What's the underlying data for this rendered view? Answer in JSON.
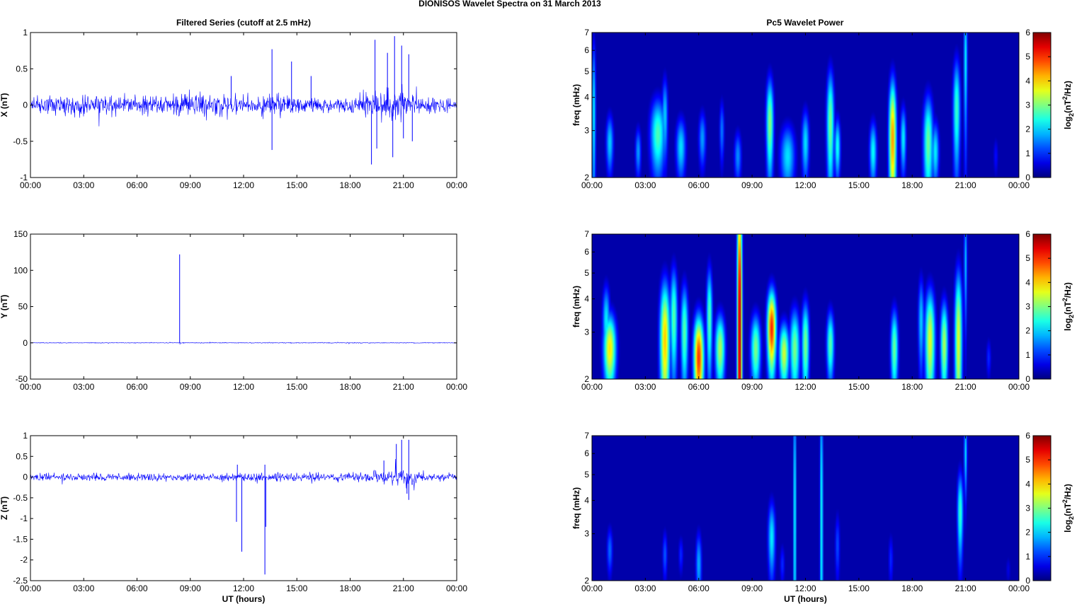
{
  "figure": {
    "title": "DIONISOS Wavelet Spectra on 31 March     2013",
    "left_title": "Filtered Series (cutoff at 2.5 mHz)",
    "right_title": "Pc5 Wavelet Power",
    "xlabel": "UT (hours)",
    "colors": {
      "trace": "#0000ff",
      "background": "#00008f",
      "axes": "#000000"
    }
  },
  "chart_data": [
    {
      "type": "line",
      "title": "Filtered Series (cutoff at 2.5 mHz)",
      "xlabel": "",
      "ylabel": "X (nT)",
      "xlim": [
        0,
        24
      ],
      "ylim": [
        -1,
        1
      ],
      "x_ticklabels": [
        "00:00",
        "03:00",
        "06:00",
        "09:00",
        "12:00",
        "15:00",
        "18:00",
        "21:00",
        "00:00"
      ],
      "y_ticks": [
        -1,
        -0.5,
        0,
        0.5,
        1
      ],
      "noise_amplitude": [
        [
          0,
          0.1
        ],
        [
          2,
          0.15
        ],
        [
          4,
          0.13
        ],
        [
          6,
          0.12
        ],
        [
          9,
          0.14
        ],
        [
          11,
          0.16
        ],
        [
          14,
          0.13
        ],
        [
          17,
          0.1
        ],
        [
          19,
          0.16
        ],
        [
          20.5,
          0.22
        ],
        [
          22,
          0.12
        ],
        [
          24,
          0.08
        ]
      ],
      "spikes": [
        [
          13.6,
          0.77
        ],
        [
          13.6,
          -0.62
        ],
        [
          14.7,
          0.6
        ],
        [
          19.2,
          -0.82
        ],
        [
          19.4,
          0.9
        ],
        [
          19.5,
          -0.6
        ],
        [
          20.1,
          0.72
        ],
        [
          20.4,
          -0.72
        ],
        [
          20.5,
          0.95
        ],
        [
          20.9,
          0.82
        ],
        [
          21.0,
          -0.46
        ],
        [
          21.3,
          0.7
        ],
        [
          21.5,
          -0.5
        ],
        [
          15.8,
          0.4
        ],
        [
          11.3,
          0.4
        ]
      ]
    },
    {
      "type": "line",
      "title": "",
      "xlabel": "",
      "ylabel": "Y (nT)",
      "xlim": [
        0,
        24
      ],
      "ylim": [
        -50,
        150
      ],
      "x_ticklabels": [
        "00:00",
        "03:00",
        "06:00",
        "09:00",
        "12:00",
        "15:00",
        "18:00",
        "21:00",
        "00:00"
      ],
      "y_ticks": [
        -50,
        0,
        50,
        100,
        150
      ],
      "noise_amplitude": [
        [
          0,
          0.5
        ],
        [
          24,
          0.5
        ]
      ],
      "spikes": [
        [
          8.4,
          122
        ],
        [
          8.42,
          -2
        ]
      ]
    },
    {
      "type": "line",
      "title": "",
      "xlabel": "UT (hours)",
      "ylabel": "Z (nT)",
      "xlim": [
        0,
        24
      ],
      "ylim": [
        -2.5,
        1
      ],
      "x_ticklabels": [
        "00:00",
        "03:00",
        "06:00",
        "09:00",
        "12:00",
        "15:00",
        "18:00",
        "21:00",
        "00:00"
      ],
      "y_ticks": [
        -2.5,
        -2,
        -1.5,
        -1,
        -0.5,
        0,
        0.5,
        1
      ],
      "noise_amplitude": [
        [
          0,
          0.08
        ],
        [
          5,
          0.09
        ],
        [
          10,
          0.09
        ],
        [
          13,
          0.1
        ],
        [
          17,
          0.09
        ],
        [
          20,
          0.14
        ],
        [
          21.2,
          0.22
        ],
        [
          22,
          0.1
        ],
        [
          24,
          0.08
        ]
      ],
      "spikes": [
        [
          11.6,
          -1.08
        ],
        [
          11.65,
          0.3
        ],
        [
          11.9,
          -1.8
        ],
        [
          13.2,
          -2.35
        ],
        [
          13.25,
          -1.2
        ],
        [
          13.2,
          0.3
        ],
        [
          20.6,
          0.8
        ],
        [
          20.9,
          0.9
        ],
        [
          21.3,
          0.9
        ],
        [
          21.3,
          -0.55
        ],
        [
          21.2,
          -0.4
        ],
        [
          19.9,
          0.4
        ]
      ]
    },
    {
      "type": "heatmap",
      "title": "Pc5 Wavelet Power",
      "xlabel": "",
      "ylabel": "freq (mHz)",
      "xlim": [
        0,
        24
      ],
      "ylim": [
        2,
        7
      ],
      "yscale": "log",
      "x_ticklabels": [
        "00:00",
        "03:00",
        "06:00",
        "09:00",
        "12:00",
        "15:00",
        "18:00",
        "21:00",
        "00:00"
      ],
      "y_ticks": [
        2,
        3,
        4,
        5,
        6,
        7
      ],
      "colorbar": {
        "label": "log2(nT²/Hz)",
        "ticks": [
          0,
          1,
          2,
          3,
          4,
          5,
          6
        ]
      },
      "blobs": [
        {
          "t": 0.1,
          "f": 3.5,
          "dt": 0.08,
          "df": 2.0,
          "p": 2.2
        },
        {
          "t": 1.0,
          "f": 2.7,
          "dt": 0.15,
          "df": 0.5,
          "p": 2.0
        },
        {
          "t": 2.6,
          "f": 2.5,
          "dt": 0.12,
          "df": 0.4,
          "p": 1.7
        },
        {
          "t": 3.7,
          "f": 2.9,
          "dt": 0.3,
          "df": 0.7,
          "p": 2.7
        },
        {
          "t": 4.1,
          "f": 3.4,
          "dt": 0.12,
          "df": 0.9,
          "p": 2.0
        },
        {
          "t": 5.0,
          "f": 2.6,
          "dt": 0.2,
          "df": 0.5,
          "p": 2.1
        },
        {
          "t": 6.2,
          "f": 2.8,
          "dt": 0.15,
          "df": 0.5,
          "p": 1.7
        },
        {
          "t": 7.3,
          "f": 3.0,
          "dt": 0.1,
          "df": 0.6,
          "p": 1.5
        },
        {
          "t": 8.2,
          "f": 2.4,
          "dt": 0.15,
          "df": 0.4,
          "p": 1.6
        },
        {
          "t": 10.0,
          "f": 3.2,
          "dt": 0.15,
          "df": 1.0,
          "p": 3.1
        },
        {
          "t": 11.0,
          "f": 2.4,
          "dt": 0.3,
          "df": 0.5,
          "p": 2.1
        },
        {
          "t": 12.0,
          "f": 2.7,
          "dt": 0.15,
          "df": 0.6,
          "p": 2.1
        },
        {
          "t": 13.4,
          "f": 3.2,
          "dt": 0.15,
          "df": 1.2,
          "p": 3.0
        },
        {
          "t": 13.8,
          "f": 2.6,
          "dt": 0.12,
          "df": 0.5,
          "p": 2.4
        },
        {
          "t": 15.8,
          "f": 2.5,
          "dt": 0.15,
          "df": 0.5,
          "p": 2.3
        },
        {
          "t": 16.9,
          "f": 2.8,
          "dt": 0.15,
          "df": 1.2,
          "p": 4.4
        },
        {
          "t": 17.5,
          "f": 2.8,
          "dt": 0.12,
          "df": 0.6,
          "p": 2.2
        },
        {
          "t": 18.9,
          "f": 2.7,
          "dt": 0.2,
          "df": 0.9,
          "p": 2.9
        },
        {
          "t": 19.3,
          "f": 2.5,
          "dt": 0.15,
          "df": 0.5,
          "p": 2.2
        },
        {
          "t": 20.5,
          "f": 3.6,
          "dt": 0.15,
          "df": 1.3,
          "p": 2.6
        },
        {
          "t": 21.0,
          "f": 5.5,
          "dt": 0.07,
          "df": 2.5,
          "p": 2.3
        },
        {
          "t": 22.7,
          "f": 2.4,
          "dt": 0.1,
          "df": 0.3,
          "p": 0.8
        }
      ]
    },
    {
      "type": "heatmap",
      "title": "",
      "xlabel": "",
      "ylabel": "freq (mHz)",
      "xlim": [
        0,
        24
      ],
      "ylim": [
        2,
        7
      ],
      "yscale": "log",
      "x_ticklabels": [
        "00:00",
        "03:00",
        "06:00",
        "09:00",
        "12:00",
        "15:00",
        "18:00",
        "21:00",
        "00:00"
      ],
      "y_ticks": [
        2,
        3,
        4,
        5,
        6,
        7
      ],
      "colorbar": {
        "label": "log2(nT²/Hz)",
        "ticks": [
          0,
          1,
          2,
          3,
          4,
          5,
          6
        ]
      },
      "blobs": [
        {
          "t": 1.0,
          "f": 2.6,
          "dt": 0.25,
          "df": 0.6,
          "p": 3.9
        },
        {
          "t": 0.8,
          "f": 3.3,
          "dt": 0.15,
          "df": 0.8,
          "p": 2.2
        },
        {
          "t": 4.1,
          "f": 2.8,
          "dt": 0.2,
          "df": 1.2,
          "p": 4.1
        },
        {
          "t": 4.6,
          "f": 3.4,
          "dt": 0.15,
          "df": 1.2,
          "p": 2.8
        },
        {
          "t": 5.2,
          "f": 3.0,
          "dt": 0.15,
          "df": 1.0,
          "p": 2.8
        },
        {
          "t": 6.0,
          "f": 2.4,
          "dt": 0.2,
          "df": 0.7,
          "p": 5.0
        },
        {
          "t": 6.6,
          "f": 3.4,
          "dt": 0.12,
          "df": 1.2,
          "p": 2.8
        },
        {
          "t": 7.2,
          "f": 2.6,
          "dt": 0.2,
          "df": 0.6,
          "p": 3.3
        },
        {
          "t": 8.3,
          "f": 3.0,
          "dt": 0.1,
          "df": 4.5,
          "p": 5.9
        },
        {
          "t": 9.2,
          "f": 2.6,
          "dt": 0.2,
          "df": 0.6,
          "p": 3.0
        },
        {
          "t": 10.1,
          "f": 3.1,
          "dt": 0.18,
          "df": 0.8,
          "p": 5.1
        },
        {
          "t": 10.8,
          "f": 2.5,
          "dt": 0.2,
          "df": 0.5,
          "p": 3.5
        },
        {
          "t": 11.4,
          "f": 2.6,
          "dt": 0.2,
          "df": 0.7,
          "p": 3.0
        },
        {
          "t": 12.0,
          "f": 2.7,
          "dt": 0.15,
          "df": 0.8,
          "p": 3.0
        },
        {
          "t": 13.4,
          "f": 2.7,
          "dt": 0.15,
          "df": 0.6,
          "p": 2.8
        },
        {
          "t": 17.0,
          "f": 2.6,
          "dt": 0.15,
          "df": 0.7,
          "p": 2.9
        },
        {
          "t": 18.5,
          "f": 3.3,
          "dt": 0.12,
          "df": 1.0,
          "p": 2.0
        },
        {
          "t": 19.0,
          "f": 2.8,
          "dt": 0.2,
          "df": 1.0,
          "p": 3.6
        },
        {
          "t": 19.8,
          "f": 2.7,
          "dt": 0.15,
          "df": 0.8,
          "p": 3.3
        },
        {
          "t": 20.6,
          "f": 2.8,
          "dt": 0.15,
          "df": 1.5,
          "p": 3.6
        },
        {
          "t": 21.0,
          "f": 5.5,
          "dt": 0.06,
          "df": 2.0,
          "p": 2.0
        },
        {
          "t": 22.3,
          "f": 2.4,
          "dt": 0.1,
          "df": 0.3,
          "p": 1.0
        }
      ]
    },
    {
      "type": "heatmap",
      "title": "",
      "xlabel": "UT (hours)",
      "ylabel": "freq (mHz)",
      "xlim": [
        0,
        24
      ],
      "ylim": [
        2,
        7
      ],
      "yscale": "log",
      "x_ticklabels": [
        "00:00",
        "03:00",
        "06:00",
        "09:00",
        "12:00",
        "15:00",
        "18:00",
        "21:00",
        "00:00"
      ],
      "y_ticks": [
        2,
        3,
        4,
        5,
        6,
        7
      ],
      "colorbar": {
        "label": "log2(nT²/Hz)",
        "ticks": [
          0,
          1,
          2,
          3,
          4,
          5,
          6
        ]
      },
      "blobs": [
        {
          "t": 1.0,
          "f": 2.6,
          "dt": 0.12,
          "df": 0.4,
          "p": 1.4
        },
        {
          "t": 4.1,
          "f": 2.5,
          "dt": 0.1,
          "df": 0.4,
          "p": 1.3
        },
        {
          "t": 5.0,
          "f": 2.5,
          "dt": 0.1,
          "df": 0.3,
          "p": 1.0
        },
        {
          "t": 6.0,
          "f": 2.3,
          "dt": 0.12,
          "df": 0.5,
          "p": 1.8
        },
        {
          "t": 10.1,
          "f": 2.9,
          "dt": 0.15,
          "df": 0.7,
          "p": 2.2
        },
        {
          "t": 10.7,
          "f": 2.3,
          "dt": 0.1,
          "df": 0.3,
          "p": 1.0
        },
        {
          "t": 11.4,
          "f": 3.5,
          "dt": 0.06,
          "df": 4.5,
          "p": 2.4
        },
        {
          "t": 12.9,
          "f": 3.5,
          "dt": 0.06,
          "df": 4.5,
          "p": 2.5
        },
        {
          "t": 13.8,
          "f": 2.7,
          "dt": 0.1,
          "df": 0.6,
          "p": 1.2
        },
        {
          "t": 16.8,
          "f": 2.4,
          "dt": 0.1,
          "df": 0.4,
          "p": 1.0
        },
        {
          "t": 20.7,
          "f": 3.6,
          "dt": 0.12,
          "df": 1.0,
          "p": 2.6
        },
        {
          "t": 21.0,
          "f": 6.0,
          "dt": 0.06,
          "df": 1.5,
          "p": 2.2
        },
        {
          "t": 23.4,
          "f": 2.2,
          "dt": 0.1,
          "df": 0.2,
          "p": 0.6
        }
      ]
    }
  ]
}
